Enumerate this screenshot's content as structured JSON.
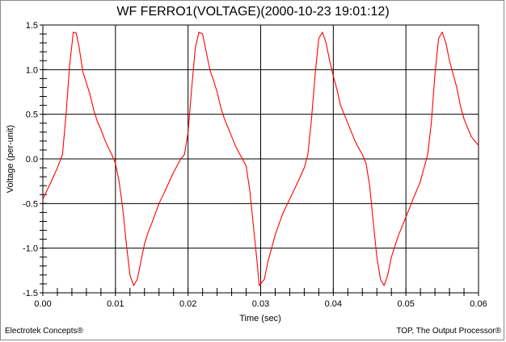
{
  "chart_data": {
    "type": "line",
    "title": "WF FERRO1(VOLTAGE)(2000-10-23 19:01:12)",
    "xlabel": "Time (sec)",
    "ylabel": "Voltage (per-unit)",
    "xlim": [
      0,
      0.06
    ],
    "ylim": [
      -1.5,
      1.5
    ],
    "x_ticks": [
      "0.00",
      "0.01",
      "0.02",
      "0.03",
      "0.04",
      "0.05",
      "0.06"
    ],
    "y_ticks": [
      "1.5",
      "1.0",
      "0.5",
      "0.0",
      "-0.5",
      "-1.0",
      "-1.5"
    ],
    "grid": true,
    "series": [
      {
        "color": "#ff0000",
        "x": [
          0.0,
          0.001,
          0.002,
          0.0027,
          0.0032,
          0.0037,
          0.0042,
          0.0046,
          0.005,
          0.0055,
          0.006,
          0.0065,
          0.007,
          0.0075,
          0.008,
          0.0085,
          0.009,
          0.0095,
          0.01,
          0.0105,
          0.011,
          0.0115,
          0.012,
          0.0125,
          0.013,
          0.0135,
          0.014,
          0.0145,
          0.015,
          0.016,
          0.017,
          0.018,
          0.019,
          0.0195,
          0.02,
          0.0205,
          0.021,
          0.0215,
          0.022,
          0.0225,
          0.023,
          0.0235,
          0.024,
          0.0245,
          0.025,
          0.0255,
          0.026,
          0.0265,
          0.027,
          0.0275,
          0.028,
          0.0285,
          0.029,
          0.0295,
          0.0298,
          0.0305,
          0.031,
          0.032,
          0.033,
          0.034,
          0.035,
          0.036,
          0.0365,
          0.037,
          0.0375,
          0.038,
          0.0385,
          0.039,
          0.0395,
          0.04,
          0.0405,
          0.041,
          0.0415,
          0.042,
          0.0425,
          0.043,
          0.0435,
          0.044,
          0.0445,
          0.045,
          0.0455,
          0.046,
          0.0465,
          0.047,
          0.0475,
          0.048,
          0.049,
          0.05,
          0.051,
          0.052,
          0.0525,
          0.053,
          0.0535,
          0.054,
          0.0545,
          0.055,
          0.0555,
          0.056,
          0.0565,
          0.057,
          0.0575,
          0.058,
          0.0585,
          0.059,
          0.06
        ],
        "y": [
          -0.45,
          -0.28,
          -0.1,
          0.05,
          0.5,
          1.05,
          1.42,
          1.41,
          1.25,
          0.98,
          0.85,
          0.72,
          0.55,
          0.42,
          0.33,
          0.22,
          0.13,
          0.05,
          -0.05,
          -0.25,
          -0.55,
          -0.95,
          -1.3,
          -1.42,
          -1.35,
          -1.15,
          -0.95,
          -0.82,
          -0.72,
          -0.5,
          -0.33,
          -0.15,
          0.0,
          0.05,
          0.3,
          0.8,
          1.25,
          1.42,
          1.4,
          1.2,
          1.0,
          0.88,
          0.75,
          0.58,
          0.45,
          0.35,
          0.25,
          0.15,
          0.07,
          0.0,
          -0.08,
          -0.35,
          -0.75,
          -1.15,
          -1.42,
          -1.35,
          -1.15,
          -0.85,
          -0.62,
          -0.45,
          -0.28,
          -0.1,
          0.05,
          0.45,
          0.95,
          1.35,
          1.42,
          1.3,
          1.1,
          0.93,
          0.78,
          0.6,
          0.5,
          0.4,
          0.3,
          0.2,
          0.12,
          0.05,
          -0.05,
          -0.3,
          -0.7,
          -1.1,
          -1.35,
          -1.42,
          -1.3,
          -1.1,
          -0.85,
          -0.65,
          -0.45,
          -0.25,
          -0.1,
          0.05,
          0.4,
          0.95,
          1.35,
          1.42,
          1.3,
          1.1,
          0.95,
          0.8,
          0.6,
          0.45,
          0.35,
          0.25,
          0.15
        ]
      }
    ]
  },
  "footer": {
    "left": "Electrotek Concepts®",
    "right": "TOP, The Output Processor®"
  }
}
